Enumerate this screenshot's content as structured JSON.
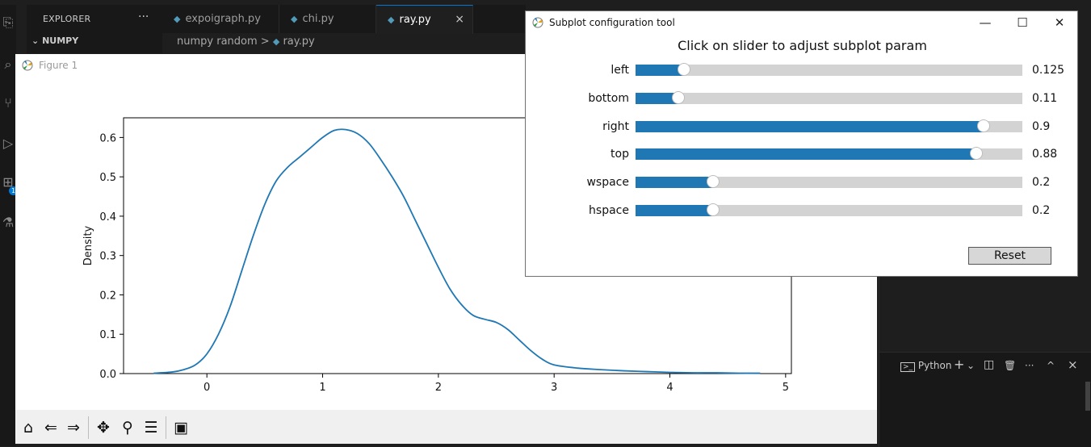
{
  "vscode": {
    "explorer_title": "EXPLORER",
    "explorer_more": "···",
    "folder": "NUMPY",
    "folder_chevron": "chevron-down-icon",
    "tabs": [
      {
        "label": "expoigraph.py",
        "active": false
      },
      {
        "label": "chi.py",
        "active": false
      },
      {
        "label": "ray.py",
        "active": true
      }
    ],
    "tab_close": "×",
    "breadcrumb": {
      "folder": "numpy random",
      "sep": ">",
      "file": "ray.py"
    },
    "activity_badge": "1",
    "terminal": {
      "name": "Python",
      "add": "+",
      "dropdown": "⌄",
      "split": "◫",
      "trash": "🗑",
      "more": "···",
      "maximize": "^",
      "close": "×"
    }
  },
  "figure": {
    "title": "Figure 1",
    "toolbar": [
      "home-icon",
      "back-icon",
      "forward-icon",
      "pan-icon",
      "zoom-icon",
      "configure-icon",
      "save-icon"
    ]
  },
  "chart_data": {
    "type": "line",
    "title": "",
    "xlabel": "",
    "ylabel": "Density",
    "xlim": [
      -0.72,
      5.05
    ],
    "ylim": [
      0,
      0.65
    ],
    "xticks": [
      0,
      1,
      2,
      3,
      4,
      5
    ],
    "yticks": [
      0.0,
      0.1,
      0.2,
      0.3,
      0.4,
      0.5,
      0.6
    ],
    "ytick_labels": [
      "0.0",
      "0.1",
      "0.2",
      "0.3",
      "0.4",
      "0.5",
      "0.6"
    ],
    "grid": false,
    "series": [
      {
        "color": "#1f77b4",
        "x": [
          -0.46,
          -0.3,
          -0.2,
          -0.1,
          0.0,
          0.1,
          0.2,
          0.3,
          0.4,
          0.5,
          0.6,
          0.7,
          0.8,
          0.9,
          1.0,
          1.1,
          1.2,
          1.3,
          1.4,
          1.5,
          1.6,
          1.7,
          1.8,
          1.9,
          2.0,
          2.1,
          2.2,
          2.3,
          2.4,
          2.5,
          2.6,
          2.7,
          2.8,
          2.9,
          3.0,
          3.2,
          3.4,
          3.6,
          3.8,
          4.0,
          4.2,
          4.4,
          4.6,
          4.78
        ],
        "y": [
          0.001,
          0.004,
          0.01,
          0.022,
          0.05,
          0.1,
          0.17,
          0.26,
          0.35,
          0.43,
          0.49,
          0.525,
          0.55,
          0.575,
          0.6,
          0.618,
          0.62,
          0.61,
          0.585,
          0.545,
          0.5,
          0.45,
          0.39,
          0.33,
          0.27,
          0.215,
          0.175,
          0.148,
          0.138,
          0.13,
          0.112,
          0.085,
          0.058,
          0.036,
          0.022,
          0.014,
          0.01,
          0.007,
          0.005,
          0.003,
          0.002,
          0.002,
          0.001,
          0.001
        ]
      }
    ]
  },
  "subplot_tool": {
    "title": "Subplot configuration tool",
    "heading": "Click on slider to adjust subplot param",
    "win_min": "—",
    "win_max": "☐",
    "win_close": "✕",
    "sliders": [
      {
        "label": "left",
        "value": "0.125",
        "fraction": 0.125
      },
      {
        "label": "bottom",
        "value": "0.11",
        "fraction": 0.11
      },
      {
        "label": "right",
        "value": "0.9",
        "fraction": 0.9
      },
      {
        "label": "top",
        "value": "0.88",
        "fraction": 0.88
      },
      {
        "label": "wspace",
        "value": "0.2",
        "fraction": 0.2
      },
      {
        "label": "hspace",
        "value": "0.2",
        "fraction": 0.2
      }
    ],
    "reset_label": "Reset"
  }
}
